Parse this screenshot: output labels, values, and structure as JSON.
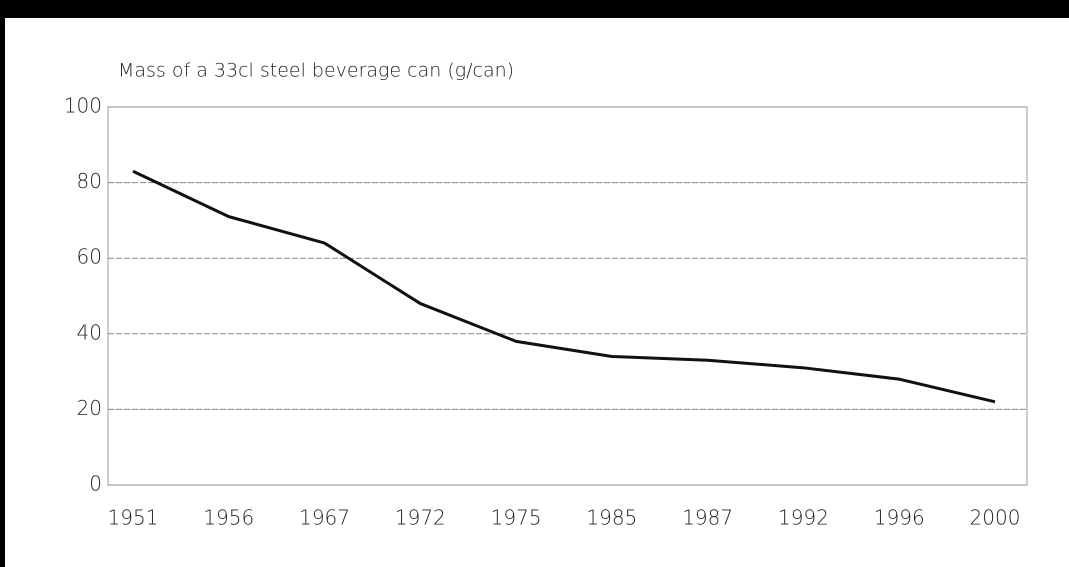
{
  "chart_data": {
    "type": "line",
    "title": "Mass of a 33cl steel beverage can (g/can)",
    "categories": [
      "1951",
      "1956",
      "1967",
      "1972",
      "1975",
      "1985",
      "1987",
      "1992",
      "1996",
      "2000"
    ],
    "series": [
      {
        "name": "Mass",
        "color": "#111111",
        "values": [
          83,
          71,
          64,
          48,
          38,
          34,
          33,
          31,
          28,
          22
        ]
      }
    ],
    "ylim": [
      0,
      100
    ],
    "yticks": [
      0,
      20,
      40,
      60,
      80,
      100
    ],
    "grid": true
  }
}
